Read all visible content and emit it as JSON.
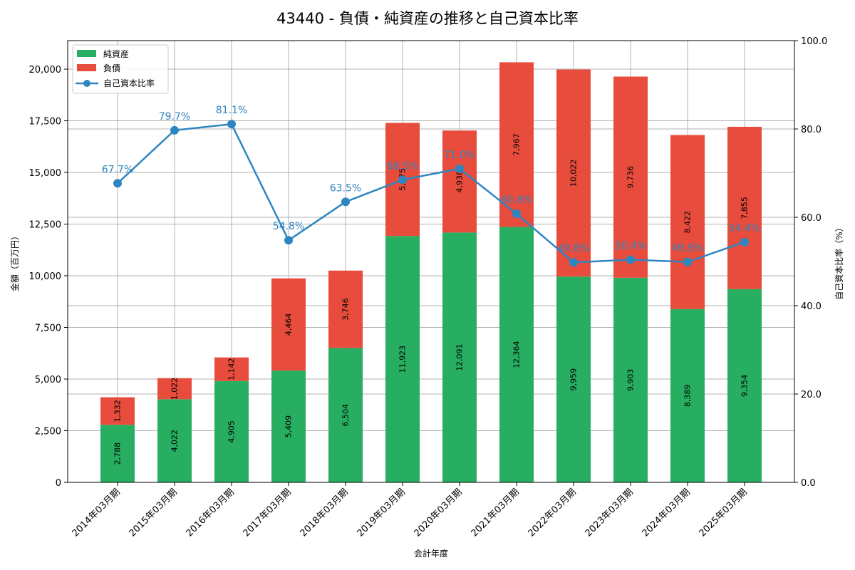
{
  "chart_data": {
    "type": "bar",
    "title": "43440 - 負債・純資産の推移と自己資本比率",
    "xlabel": "会計年度",
    "ylabel": "金額（百万円）",
    "y2label": "自己資本比率（%）",
    "categories": [
      "2014年03月期",
      "2015年03月期",
      "2016年03月期",
      "2017年03月期",
      "2018年03月期",
      "2019年03月期",
      "2020年03月期",
      "2021年03月期",
      "2022年03月期",
      "2023年03月期",
      "2024年03月期",
      "2025年03月期"
    ],
    "series": [
      {
        "name": "純資産",
        "type": "bar",
        "stack": "total",
        "color": "#27ae60",
        "values": [
          2788,
          4022,
          4905,
          5409,
          6504,
          11923,
          12091,
          12364,
          9959,
          9903,
          8389,
          9354
        ],
        "labels": [
          "2,788",
          "4,022",
          "4,905",
          "5,409",
          "6,504",
          "11,923",
          "12,091",
          "12,364",
          "9,959",
          "9,903",
          "8,389",
          "9,354"
        ]
      },
      {
        "name": "負債",
        "type": "bar",
        "stack": "total",
        "color": "#e74c3c",
        "values": [
          1332,
          1022,
          1142,
          4464,
          3746,
          5475,
          4938,
          7967,
          10022,
          9736,
          8422,
          7855
        ],
        "labels": [
          "1,332",
          "1,022",
          "1,142",
          "4,464",
          "3,746",
          "5,475",
          "4,938",
          "7,967",
          "10,022",
          "9,736",
          "8,422",
          "7,855"
        ]
      },
      {
        "name": "自己資本比率",
        "type": "line",
        "axis": "right",
        "color": "#2e86c1",
        "values": [
          67.7,
          79.7,
          81.1,
          54.8,
          63.5,
          68.5,
          71.0,
          60.8,
          49.8,
          50.4,
          49.9,
          54.4
        ],
        "labels": [
          "67.7%",
          "79.7%",
          "81.1%",
          "54.8%",
          "63.5%",
          "68.5%",
          "71.0%",
          "60.8%",
          "49.8%",
          "50.4%",
          "49.9%",
          "54.4%"
        ]
      }
    ],
    "ylim": [
      0,
      21380
    ],
    "y2lim": [
      0,
      100
    ],
    "yticks": [
      "0",
      "2,500",
      "5,000",
      "7,500",
      "10,000",
      "12,500",
      "15,000",
      "17,500",
      "20,000"
    ],
    "ytick_values": [
      0,
      2500,
      5000,
      7500,
      10000,
      12500,
      15000,
      17500,
      20000
    ],
    "y2ticks": [
      "0.0",
      "20.0",
      "40.0",
      "60.0",
      "80.0",
      "100.0"
    ],
    "y2tick_values": [
      0,
      20,
      40,
      60,
      80,
      100
    ],
    "grid": true,
    "legend_position": "upper left",
    "legend": [
      "純資産",
      "負債",
      "自己資本比率"
    ]
  }
}
